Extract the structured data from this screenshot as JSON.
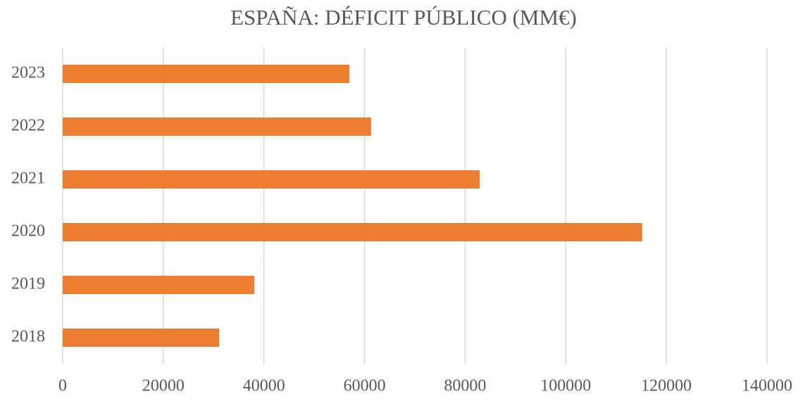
{
  "chart_data": {
    "type": "bar",
    "orientation": "horizontal",
    "title": "ESPAÑA: DÉFICIT PÚBLICO (MM€)",
    "categories": [
      "2018",
      "2019",
      "2020",
      "2021",
      "2022",
      "2023"
    ],
    "values": [
      31100,
      38100,
      115200,
      82900,
      61300,
      57000
    ],
    "color": "#ed7d31",
    "xlim": [
      0,
      140000
    ],
    "xticks": [
      0,
      20000,
      40000,
      60000,
      80000,
      100000,
      120000,
      140000
    ],
    "grid": true
  }
}
